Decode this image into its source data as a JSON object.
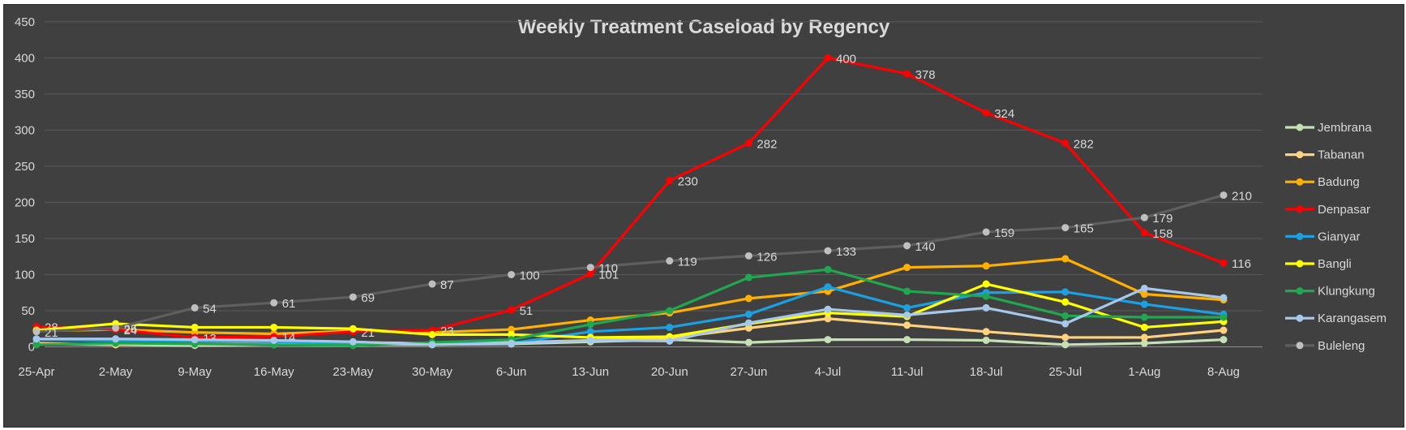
{
  "chart_data": {
    "type": "line",
    "title": "Weekly Treatment Caseload by Regency",
    "xlabel": "",
    "ylabel": "",
    "ylim": [
      0,
      450
    ],
    "yticks": [
      0,
      50,
      100,
      150,
      200,
      250,
      300,
      350,
      400,
      450
    ],
    "grid": true,
    "legend_position": "right",
    "categories": [
      "25-Apr",
      "2-May",
      "9-May",
      "16-May",
      "23-May",
      "30-May",
      "6-Jun",
      "13-Jun",
      "20-Jun",
      "27-Jun",
      "4-Jul",
      "11-Jul",
      "18-Jul",
      "25-Jul",
      "1-Aug",
      "8-Aug"
    ],
    "series": [
      {
        "name": "Jembrana",
        "color": "#c5e0b4",
        "labeled": false,
        "values": [
          4,
          3,
          2,
          3,
          3,
          3,
          4,
          7,
          10,
          6,
          10,
          10,
          9,
          3,
          5,
          10
        ]
      },
      {
        "name": "Tabanan",
        "color": "#ffd27f",
        "labeled": false,
        "values": [
          5,
          3,
          4,
          4,
          6,
          5,
          6,
          9,
          12,
          26,
          39,
          30,
          21,
          13,
          13,
          23
        ]
      },
      {
        "name": "Badung",
        "color": "#ffb000",
        "labeled": false,
        "values": [
          22,
          24,
          20,
          18,
          22,
          20,
          24,
          37,
          47,
          67,
          77,
          110,
          112,
          122,
          73,
          65
        ]
      },
      {
        "name": "Denpasar",
        "color": "#ff0000",
        "labeled": true,
        "values": [
          28,
          24,
          13,
          14,
          21,
          23,
          51,
          101,
          230,
          282,
          400,
          378,
          324,
          282,
          158,
          116
        ]
      },
      {
        "name": "Gianyar",
        "color": "#1ba1e2",
        "labeled": false,
        "values": [
          10,
          9,
          8,
          7,
          5,
          4,
          5,
          21,
          27,
          45,
          83,
          54,
          75,
          76,
          59,
          45
        ]
      },
      {
        "name": "Bangli",
        "color": "#ffff00",
        "labeled": false,
        "values": [
          23,
          32,
          27,
          27,
          25,
          17,
          17,
          13,
          14,
          32,
          47,
          42,
          87,
          62,
          27,
          35
        ]
      },
      {
        "name": "Klungkung",
        "color": "#1fa84f",
        "labeled": false,
        "values": [
          3,
          5,
          4,
          3,
          2,
          6,
          10,
          31,
          50,
          96,
          107,
          77,
          70,
          43,
          41,
          41
        ]
      },
      {
        "name": "Karangasem",
        "color": "#a6c8ea",
        "labeled": false,
        "values": [
          11,
          11,
          10,
          9,
          7,
          3,
          5,
          9,
          8,
          33,
          52,
          44,
          54,
          32,
          81,
          68
        ]
      },
      {
        "name": "Buleleng",
        "color": "#5f5f5f",
        "marker_color": "#bfbfbf",
        "labeled": true,
        "values": [
          21,
          26,
          54,
          61,
          69,
          87,
          100,
          110,
          119,
          126,
          133,
          140,
          159,
          165,
          179,
          210
        ]
      }
    ]
  }
}
